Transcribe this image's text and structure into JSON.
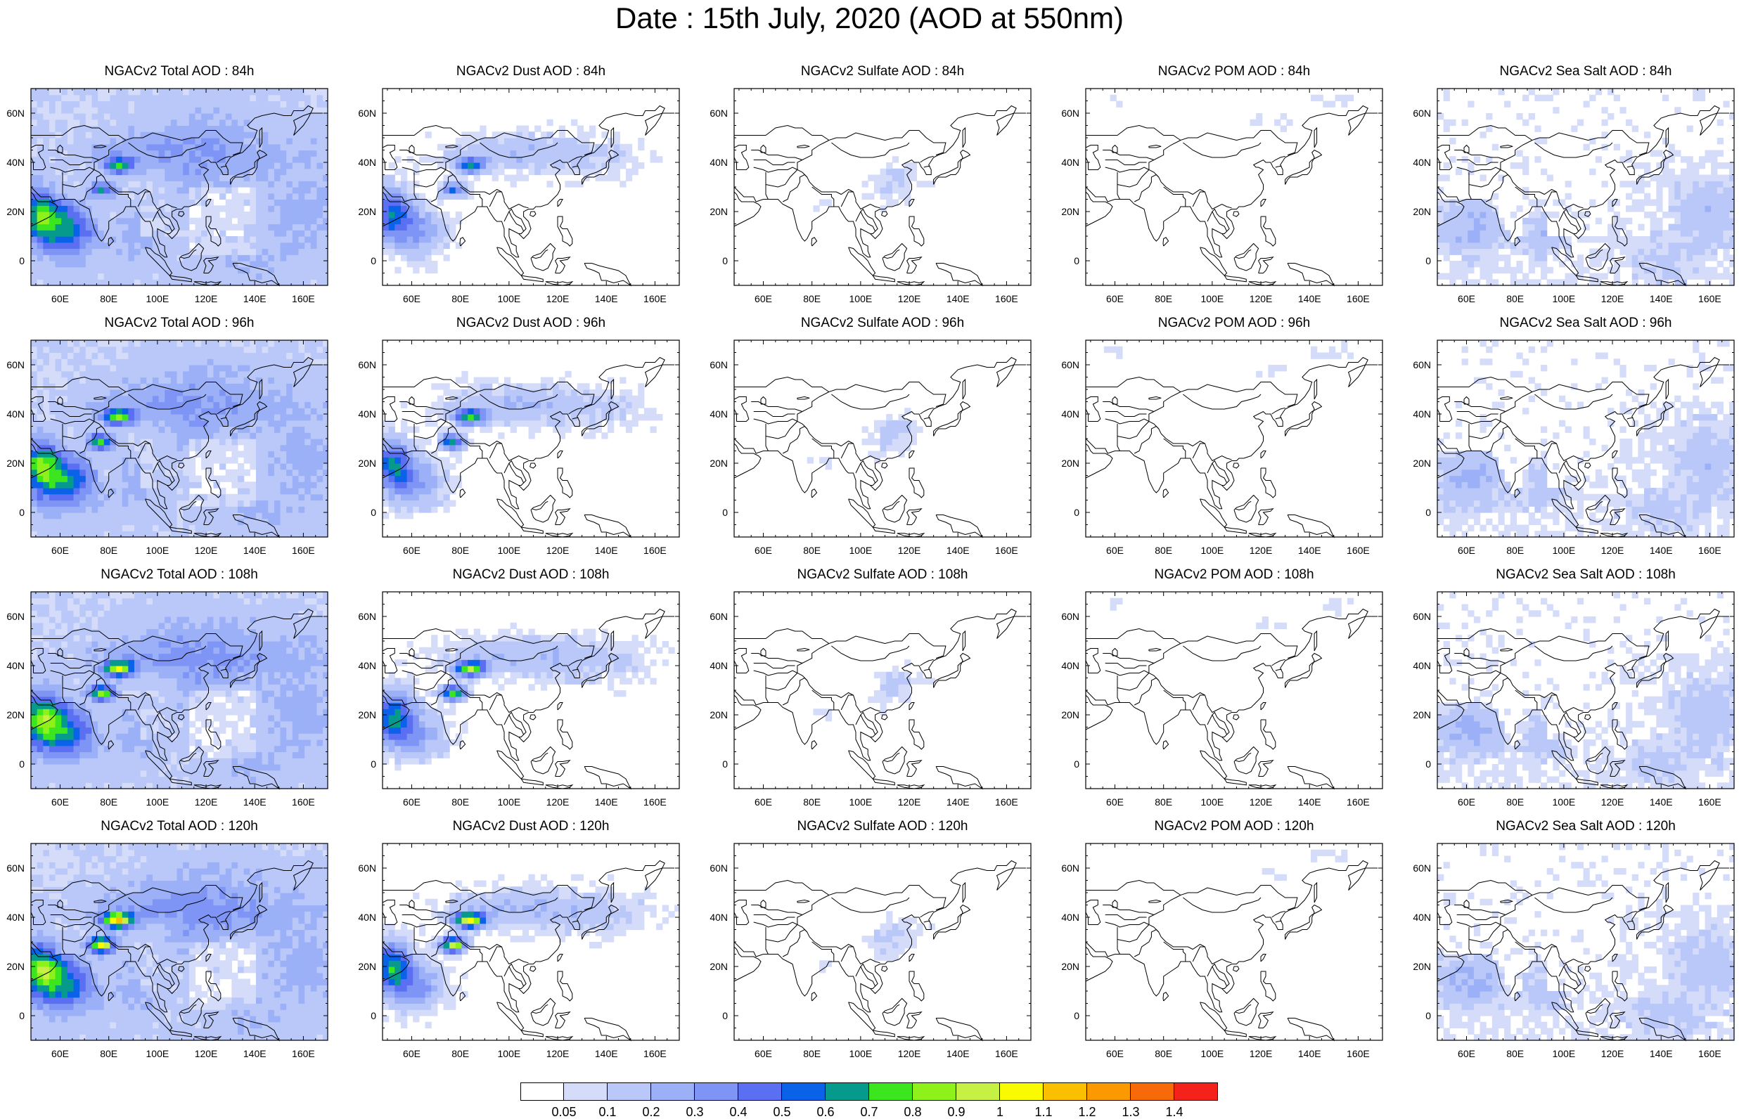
{
  "title": "Date : 15th July, 2020 (AOD at 550nm)",
  "axes": {
    "lat_labels": [
      "60N",
      "40N",
      "20N",
      "0"
    ],
    "lat_values": [
      60,
      40,
      20,
      0
    ],
    "lon_labels": [
      "60E",
      "80E",
      "100E",
      "120E",
      "140E",
      "160E"
    ],
    "lon_values": [
      60,
      80,
      100,
      120,
      140,
      160
    ],
    "lon_range": [
      48,
      170
    ],
    "lat_range": [
      -10,
      70
    ]
  },
  "panels": [
    {
      "title": "NGACv2 Total AOD : 84h",
      "field": "total",
      "hour": 84
    },
    {
      "title": "NGACv2 Dust AOD : 84h",
      "field": "dust",
      "hour": 84
    },
    {
      "title": "NGACv2 Sulfate AOD : 84h",
      "field": "sulfate",
      "hour": 84
    },
    {
      "title": "NGACv2 POM AOD : 84h",
      "field": "pom",
      "hour": 84
    },
    {
      "title": "NGACv2 Sea Salt AOD : 84h",
      "field": "seasalt",
      "hour": 84
    },
    {
      "title": "NGACv2 Total AOD : 96h",
      "field": "total",
      "hour": 96
    },
    {
      "title": "NGACv2 Dust AOD : 96h",
      "field": "dust",
      "hour": 96
    },
    {
      "title": "NGACv2 Sulfate AOD : 96h",
      "field": "sulfate",
      "hour": 96
    },
    {
      "title": "NGACv2 POM AOD : 96h",
      "field": "pom",
      "hour": 96
    },
    {
      "title": "NGACv2 Sea Salt AOD : 96h",
      "field": "seasalt",
      "hour": 96
    },
    {
      "title": "NGACv2 Total AOD : 108h",
      "field": "total",
      "hour": 108
    },
    {
      "title": "NGACv2 Dust AOD : 108h",
      "field": "dust",
      "hour": 108
    },
    {
      "title": "NGACv2 Sulfate AOD : 108h",
      "field": "sulfate",
      "hour": 108
    },
    {
      "title": "NGACv2 POM AOD : 108h",
      "field": "pom",
      "hour": 108
    },
    {
      "title": "NGACv2 Sea Salt AOD : 108h",
      "field": "seasalt",
      "hour": 108
    },
    {
      "title": "NGACv2 Total AOD : 120h",
      "field": "total",
      "hour": 120
    },
    {
      "title": "NGACv2 Dust AOD : 120h",
      "field": "dust",
      "hour": 120
    },
    {
      "title": "NGACv2 Sulfate AOD : 120h",
      "field": "sulfate",
      "hour": 120
    },
    {
      "title": "NGACv2 POM AOD : 120h",
      "field": "pom",
      "hour": 120
    },
    {
      "title": "NGACv2 Sea Salt  AOD : 120h",
      "field": "seasalt",
      "hour": 120
    }
  ],
  "colorbar": {
    "labels": [
      "0.05",
      "0.1",
      "0.2",
      "0.3",
      "0.4",
      "0.5",
      "0.6",
      "0.7",
      "0.8",
      "0.9",
      "1",
      "1.1",
      "1.2",
      "1.3",
      "1.4"
    ],
    "colors": [
      "#ffffff",
      "#d4dcfa",
      "#b9c8f9",
      "#9bb0f7",
      "#7f95f6",
      "#5a6ff2",
      "#0a62e8",
      "#069a8c",
      "#3ce61e",
      "#8ef21a",
      "#c6f043",
      "#fafa00",
      "#fac000",
      "#fa9a00",
      "#f76a0a",
      "#f5221c"
    ]
  }
}
